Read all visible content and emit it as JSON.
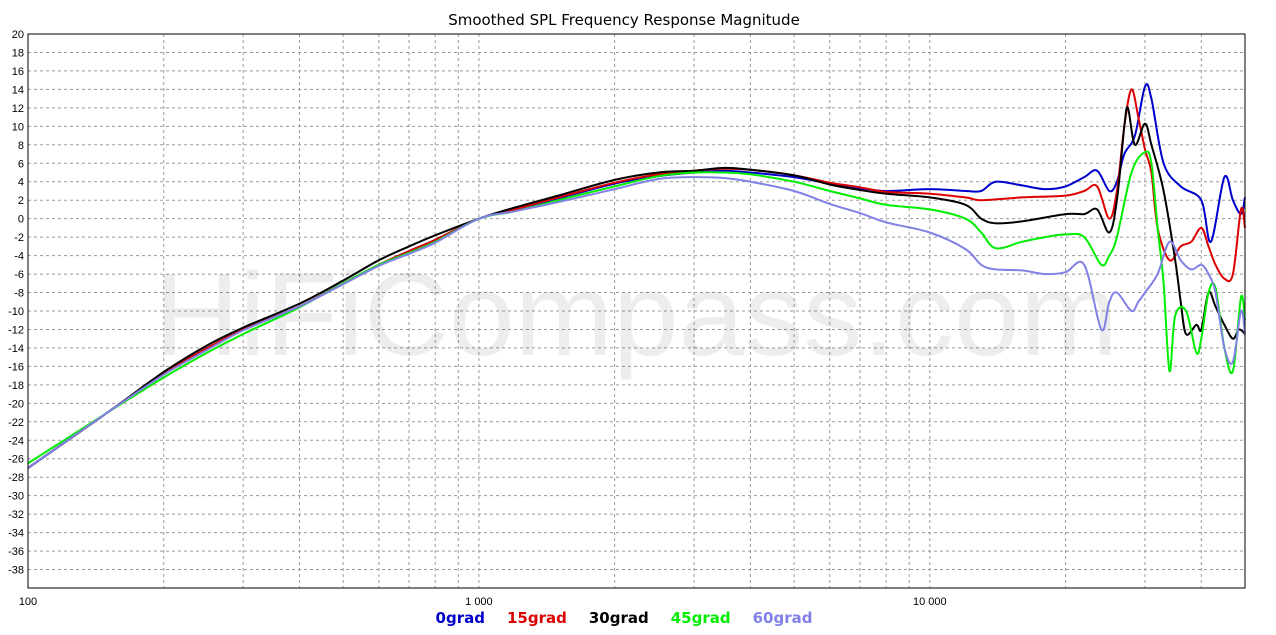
{
  "watermark": "HiFiCompass.com",
  "chart_data": {
    "type": "line",
    "title": "Smoothed SPL Frequency Response Magnitude",
    "xlabel": "",
    "ylabel": "",
    "x_scale": "log",
    "xlim": [
      100,
      50000
    ],
    "ylim": [
      -40,
      20
    ],
    "x_ticks": [
      {
        "value": 100,
        "label": "100"
      },
      {
        "value": 1000,
        "label": "1 000"
      },
      {
        "value": 10000,
        "label": "10 000"
      }
    ],
    "y_ticks": [
      20,
      18,
      16,
      14,
      12,
      10,
      8,
      6,
      4,
      2,
      0,
      -2,
      -4,
      -6,
      -8,
      -10,
      -12,
      -14,
      -16,
      -18,
      -20,
      -22,
      -24,
      -26,
      -28,
      -30,
      -32,
      -34,
      -36,
      -38
    ],
    "grid": true,
    "legend_position": "bottom",
    "series": [
      {
        "name": "0grad",
        "color": "#0000cc",
        "points": [
          [
            100,
            -27
          ],
          [
            150,
            -21
          ],
          [
            200,
            -16.8
          ],
          [
            250,
            -14
          ],
          [
            300,
            -12
          ],
          [
            400,
            -9.5
          ],
          [
            500,
            -7
          ],
          [
            600,
            -5
          ],
          [
            700,
            -3.5
          ],
          [
            800,
            -2.3
          ],
          [
            1000,
            0
          ],
          [
            1200,
            1
          ],
          [
            1500,
            2.2
          ],
          [
            2000,
            3.8
          ],
          [
            2500,
            4.6
          ],
          [
            3000,
            5
          ],
          [
            3500,
            5.2
          ],
          [
            4000,
            5
          ],
          [
            5000,
            4.5
          ],
          [
            6000,
            3.8
          ],
          [
            7000,
            3.3
          ],
          [
            8000,
            3
          ],
          [
            10000,
            3.2
          ],
          [
            12000,
            3
          ],
          [
            13000,
            3
          ],
          [
            14000,
            4
          ],
          [
            16000,
            3.6
          ],
          [
            18000,
            3.2
          ],
          [
            20000,
            3.5
          ],
          [
            22000,
            4.5
          ],
          [
            23500,
            5.2
          ],
          [
            25000,
            3
          ],
          [
            26000,
            4
          ],
          [
            27000,
            7
          ],
          [
            28500,
            9
          ],
          [
            30000,
            14.3
          ],
          [
            31000,
            13
          ],
          [
            33000,
            6
          ],
          [
            36000,
            3.5
          ],
          [
            40000,
            2
          ],
          [
            42000,
            -2.5
          ],
          [
            45000,
            4.5
          ],
          [
            47000,
            2
          ],
          [
            49000,
            0.5
          ],
          [
            50000,
            2.3
          ]
        ]
      },
      {
        "name": "15grad",
        "color": "#dd0000",
        "points": [
          [
            100,
            -27
          ],
          [
            150,
            -21
          ],
          [
            200,
            -16.8
          ],
          [
            250,
            -14
          ],
          [
            300,
            -12
          ],
          [
            400,
            -9.5
          ],
          [
            500,
            -7
          ],
          [
            600,
            -5
          ],
          [
            700,
            -3.5
          ],
          [
            800,
            -2.3
          ],
          [
            1000,
            0
          ],
          [
            1200,
            1
          ],
          [
            1500,
            2.3
          ],
          [
            2000,
            3.9
          ],
          [
            2500,
            4.8
          ],
          [
            3000,
            5.2
          ],
          [
            3500,
            5.4
          ],
          [
            4000,
            5.3
          ],
          [
            5000,
            4.7
          ],
          [
            6000,
            3.9
          ],
          [
            7000,
            3.4
          ],
          [
            8000,
            2.9
          ],
          [
            10000,
            2.7
          ],
          [
            12000,
            2.3
          ],
          [
            13000,
            2
          ],
          [
            16000,
            2.3
          ],
          [
            20000,
            2.5
          ],
          [
            22000,
            3
          ],
          [
            23500,
            3.5
          ],
          [
            25000,
            0
          ],
          [
            26000,
            3
          ],
          [
            27000,
            10
          ],
          [
            28000,
            14
          ],
          [
            29000,
            11
          ],
          [
            30000,
            7.5
          ],
          [
            31000,
            5
          ],
          [
            32000,
            -1
          ],
          [
            34000,
            -4.5
          ],
          [
            36000,
            -3
          ],
          [
            38000,
            -2.5
          ],
          [
            40000,
            -1
          ],
          [
            41500,
            -3
          ],
          [
            43000,
            -5
          ],
          [
            45000,
            -6.5
          ],
          [
            47000,
            -6
          ],
          [
            49000,
            1
          ],
          [
            50000,
            -1
          ]
        ]
      },
      {
        "name": "30grad",
        "color": "#000000",
        "points": [
          [
            100,
            -27
          ],
          [
            150,
            -21
          ],
          [
            200,
            -16.6
          ],
          [
            250,
            -13.7
          ],
          [
            300,
            -11.8
          ],
          [
            400,
            -9.2
          ],
          [
            500,
            -6.7
          ],
          [
            600,
            -4.5
          ],
          [
            700,
            -3
          ],
          [
            800,
            -1.8
          ],
          [
            1000,
            0
          ],
          [
            1200,
            1.2
          ],
          [
            1500,
            2.5
          ],
          [
            2000,
            4.2
          ],
          [
            2500,
            5
          ],
          [
            3000,
            5.2
          ],
          [
            3500,
            5.5
          ],
          [
            4000,
            5.3
          ],
          [
            5000,
            4.7
          ],
          [
            6000,
            3.7
          ],
          [
            7000,
            3.1
          ],
          [
            8000,
            2.7
          ],
          [
            10000,
            2.3
          ],
          [
            12000,
            1.5
          ],
          [
            13000,
            0
          ],
          [
            14000,
            -0.5
          ],
          [
            16000,
            -0.3
          ],
          [
            20000,
            0.5
          ],
          [
            22000,
            0.5
          ],
          [
            23500,
            1
          ],
          [
            25000,
            -1.5
          ],
          [
            26000,
            2
          ],
          [
            27000,
            10
          ],
          [
            27500,
            12
          ],
          [
            28500,
            8
          ],
          [
            30000,
            10.3
          ],
          [
            31000,
            8
          ],
          [
            33000,
            3
          ],
          [
            35000,
            -4.5
          ],
          [
            36000,
            -9
          ],
          [
            37000,
            -12.5
          ],
          [
            39000,
            -11.5
          ],
          [
            40000,
            -12
          ],
          [
            41500,
            -8
          ],
          [
            43000,
            -9.5
          ],
          [
            45000,
            -11.5
          ],
          [
            47000,
            -13
          ],
          [
            48500,
            -12
          ],
          [
            50000,
            -12.5
          ]
        ]
      },
      {
        "name": "45grad",
        "color": "#00ee00",
        "points": [
          [
            100,
            -26.5
          ],
          [
            150,
            -21
          ],
          [
            200,
            -17.2
          ],
          [
            250,
            -14.5
          ],
          [
            300,
            -12.5
          ],
          [
            400,
            -9.6
          ],
          [
            500,
            -7
          ],
          [
            600,
            -5
          ],
          [
            700,
            -3.7
          ],
          [
            800,
            -2.5
          ],
          [
            1000,
            0
          ],
          [
            1200,
            0.8
          ],
          [
            1500,
            2
          ],
          [
            2000,
            3.5
          ],
          [
            2500,
            4.6
          ],
          [
            3000,
            5
          ],
          [
            3500,
            5
          ],
          [
            4000,
            4.8
          ],
          [
            5000,
            4
          ],
          [
            6000,
            3
          ],
          [
            7000,
            2.2
          ],
          [
            8000,
            1.5
          ],
          [
            10000,
            1
          ],
          [
            12000,
            0
          ],
          [
            13000,
            -1.5
          ],
          [
            14000,
            -3.2
          ],
          [
            16000,
            -2.5
          ],
          [
            18000,
            -2
          ],
          [
            20000,
            -1.7
          ],
          [
            22000,
            -2
          ],
          [
            24000,
            -5
          ],
          [
            25000,
            -4
          ],
          [
            26000,
            -2
          ],
          [
            28000,
            5
          ],
          [
            30000,
            7.2
          ],
          [
            31000,
            6
          ],
          [
            32000,
            -1
          ],
          [
            33000,
            -7
          ],
          [
            34000,
            -16.5
          ],
          [
            35000,
            -10.5
          ],
          [
            37000,
            -10
          ],
          [
            39000,
            -14.5
          ],
          [
            40000,
            -13
          ],
          [
            41500,
            -8
          ],
          [
            43000,
            -7.5
          ],
          [
            45000,
            -14
          ],
          [
            47000,
            -16.5
          ],
          [
            49000,
            -8.5
          ],
          [
            50000,
            -11
          ]
        ]
      },
      {
        "name": "60grad",
        "color": "#8080e6",
        "points": [
          [
            100,
            -27
          ],
          [
            150,
            -21
          ],
          [
            200,
            -16.9
          ],
          [
            250,
            -14.2
          ],
          [
            300,
            -12.1
          ],
          [
            400,
            -9.5
          ],
          [
            500,
            -7.1
          ],
          [
            600,
            -5.1
          ],
          [
            700,
            -3.8
          ],
          [
            800,
            -2.6
          ],
          [
            1000,
            0
          ],
          [
            1200,
            0.8
          ],
          [
            1500,
            1.8
          ],
          [
            2000,
            3.2
          ],
          [
            2500,
            4.3
          ],
          [
            3000,
            4.5
          ],
          [
            3500,
            4.4
          ],
          [
            4000,
            4
          ],
          [
            5000,
            3
          ],
          [
            6000,
            1.6
          ],
          [
            7000,
            0.6
          ],
          [
            8000,
            -0.4
          ],
          [
            10000,
            -1.5
          ],
          [
            12000,
            -3.3
          ],
          [
            13000,
            -5
          ],
          [
            14000,
            -5.5
          ],
          [
            16000,
            -5.6
          ],
          [
            18000,
            -6
          ],
          [
            20000,
            -5.8
          ],
          [
            22000,
            -5
          ],
          [
            24000,
            -12
          ],
          [
            25000,
            -9
          ],
          [
            26000,
            -8
          ],
          [
            28000,
            -10
          ],
          [
            29000,
            -9
          ],
          [
            30000,
            -8
          ],
          [
            32000,
            -6
          ],
          [
            34000,
            -2.5
          ],
          [
            36000,
            -4.5
          ],
          [
            38000,
            -5.5
          ],
          [
            40000,
            -5
          ],
          [
            41500,
            -6
          ],
          [
            43000,
            -8
          ],
          [
            45000,
            -14
          ],
          [
            47000,
            -15.5
          ],
          [
            49000,
            -10
          ],
          [
            50000,
            -12.5
          ]
        ]
      }
    ]
  }
}
